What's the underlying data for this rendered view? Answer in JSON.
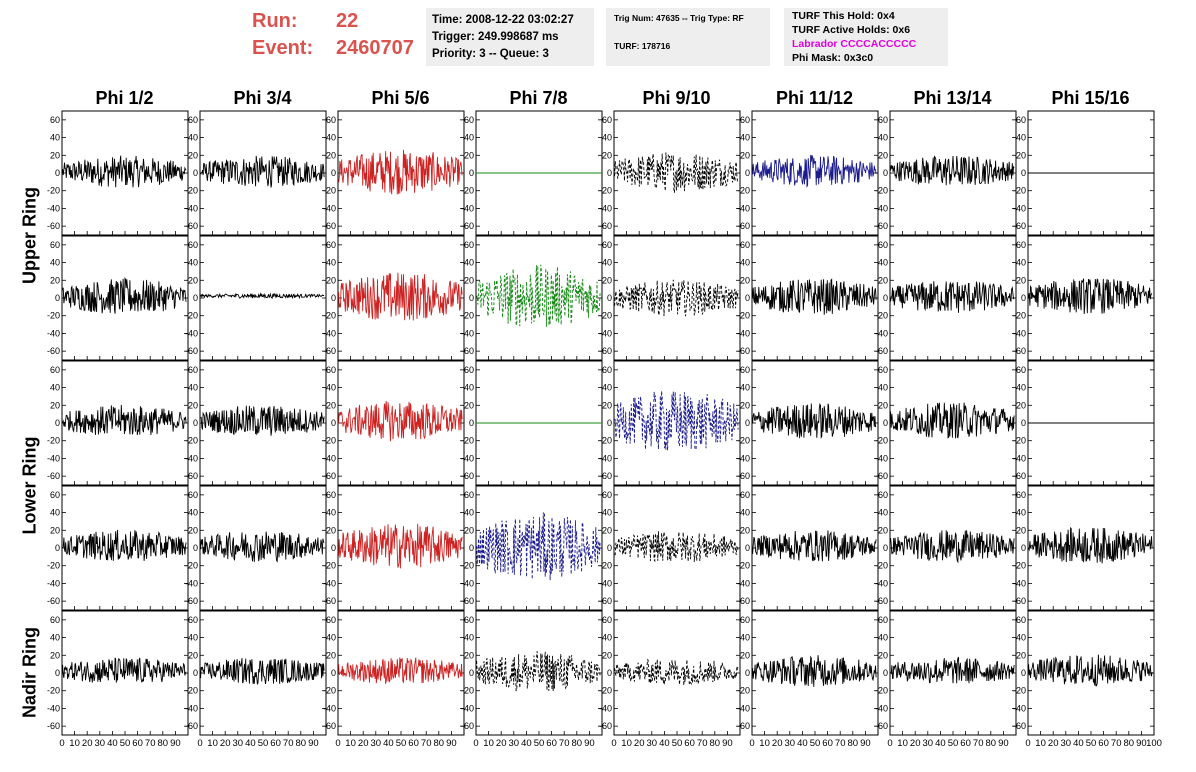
{
  "header": {
    "run_label": "Run:",
    "run_value": "22",
    "event_label": "Event:",
    "event_value": "2460707",
    "time": "Time: 2008-12-22 03:02:27",
    "trigger": "Trigger: 249.998687 ms",
    "priority": "Priority: 3 -- Queue: 3",
    "trig_num": "Trig Num: 47635 -- Trig Type: RF",
    "turf": "TURF: 178716",
    "turf_hold": "TURF This Hold: 0x4",
    "turf_active": "TURF Active Holds: 0x6",
    "labrador": "Labrador CCCCACCCCC",
    "phi_mask": "Phi Mask: 0x3c0"
  },
  "columns": [
    "Phi 1/2",
    "Phi 3/4",
    "Phi 5/6",
    "Phi 7/8",
    "Phi 9/10",
    "Phi 11/12",
    "Phi 13/14",
    "Phi 15/16"
  ],
  "rows": [
    "Upper Ring",
    "Lower Ring",
    "Nadir Ring"
  ],
  "colors": {
    "black": "#000000",
    "red": "#cc2222",
    "green": "#118811",
    "blue": "#1a1a8c",
    "title_red": "#d9534f",
    "magenta": "#e000e0"
  },
  "chart_data": {
    "type": "line",
    "xlim": [
      0,
      100
    ],
    "ylim": [
      -70,
      70
    ],
    "x_ticks": [
      0,
      10,
      20,
      30,
      40,
      50,
      60,
      70,
      80,
      90,
      100
    ],
    "x_tick_labels": [
      "0",
      "10",
      "20",
      "30",
      "40",
      "50",
      "60",
      "70",
      "80",
      "90",
      "100"
    ],
    "y_ticks": [
      -60,
      -40,
      -20,
      0,
      20,
      40,
      60
    ],
    "y_tick_labels": [
      "-60",
      "-40",
      "-20",
      "0",
      "20",
      "40",
      "60"
    ],
    "panels": [
      [
        {
          "color": "black",
          "dash": false,
          "amp": 14,
          "center": 5,
          "trace": "noise"
        },
        {
          "color": "black",
          "dash": false,
          "amp": 14,
          "center": 5,
          "trace": "noise"
        },
        {
          "color": "red",
          "dash": false,
          "amp": 20,
          "center": 5,
          "trace": "noise"
        },
        {
          "color": "green",
          "dash": false,
          "amp": 0,
          "center": 0,
          "trace": "flat"
        },
        {
          "color": "black",
          "dash": true,
          "amp": 18,
          "center": 5,
          "trace": "noise"
        },
        {
          "color": "blue",
          "dash": false,
          "amp": 14,
          "center": 8,
          "trace": "noise"
        },
        {
          "color": "black",
          "dash": false,
          "amp": 14,
          "center": 8,
          "trace": "noise"
        },
        {
          "color": "black",
          "dash": false,
          "amp": 0,
          "center": 0,
          "trace": "flat"
        }
      ],
      [
        {
          "color": "black",
          "dash": false,
          "amp": 16,
          "center": 5,
          "trace": "noise"
        },
        {
          "color": "black",
          "dash": false,
          "amp": 2,
          "center": 8,
          "trace": "noise"
        },
        {
          "color": "red",
          "dash": false,
          "amp": 22,
          "center": 5,
          "trace": "noise"
        },
        {
          "color": "green",
          "dash": true,
          "amp": 28,
          "center": 5,
          "trace": "noise"
        },
        {
          "color": "black",
          "dash": true,
          "amp": 16,
          "center": 0,
          "trace": "noise"
        },
        {
          "color": "black",
          "dash": false,
          "amp": 16,
          "center": 5,
          "trace": "noise"
        },
        {
          "color": "black",
          "dash": false,
          "amp": 15,
          "center": 5,
          "trace": "noise"
        },
        {
          "color": "black",
          "dash": false,
          "amp": 16,
          "center": 8,
          "trace": "noise"
        }
      ],
      [
        {
          "color": "black",
          "dash": false,
          "amp": 14,
          "center": 8,
          "trace": "noise"
        },
        {
          "color": "black",
          "dash": false,
          "amp": 14,
          "center": 8,
          "trace": "noise"
        },
        {
          "color": "red",
          "dash": false,
          "amp": 18,
          "center": 8,
          "trace": "noise"
        },
        {
          "color": "green",
          "dash": false,
          "amp": 0,
          "center": 0,
          "trace": "flat"
        },
        {
          "color": "blue",
          "dash": true,
          "amp": 28,
          "center": 5,
          "trace": "noise"
        },
        {
          "color": "black",
          "dash": false,
          "amp": 16,
          "center": 8,
          "trace": "noise"
        },
        {
          "color": "black",
          "dash": false,
          "amp": 16,
          "center": 10,
          "trace": "noise"
        },
        {
          "color": "black",
          "dash": false,
          "amp": 0,
          "center": 0,
          "trace": "flat"
        }
      ],
      [
        {
          "color": "black",
          "dash": false,
          "amp": 14,
          "center": 8,
          "trace": "noise"
        },
        {
          "color": "black",
          "dash": false,
          "amp": 14,
          "center": 8,
          "trace": "noise"
        },
        {
          "color": "red",
          "dash": false,
          "amp": 20,
          "center": 8,
          "trace": "noise"
        },
        {
          "color": "blue",
          "dash": true,
          "amp": 30,
          "center": 5,
          "trace": "noise"
        },
        {
          "color": "black",
          "dash": true,
          "amp": 14,
          "center": 5,
          "trace": "noise"
        },
        {
          "color": "black",
          "dash": false,
          "amp": 14,
          "center": 8,
          "trace": "noise"
        },
        {
          "color": "black",
          "dash": false,
          "amp": 14,
          "center": 8,
          "trace": "noise"
        },
        {
          "color": "black",
          "dash": false,
          "amp": 16,
          "center": 10,
          "trace": "noise"
        }
      ],
      [
        {
          "color": "black",
          "dash": false,
          "amp": 12,
          "center": 8,
          "trace": "noise"
        },
        {
          "color": "black",
          "dash": false,
          "amp": 12,
          "center": 8,
          "trace": "noise"
        },
        {
          "color": "red",
          "dash": false,
          "amp": 12,
          "center": 8,
          "trace": "noise"
        },
        {
          "color": "black",
          "dash": true,
          "amp": 18,
          "center": 5,
          "trace": "noise"
        },
        {
          "color": "black",
          "dash": true,
          "amp": 12,
          "center": 5,
          "trace": "noise"
        },
        {
          "color": "black",
          "dash": false,
          "amp": 14,
          "center": 8,
          "trace": "noise"
        },
        {
          "color": "black",
          "dash": false,
          "amp": 12,
          "center": 8,
          "trace": "noise"
        },
        {
          "color": "black",
          "dash": false,
          "amp": 14,
          "center": 10,
          "trace": "noise"
        }
      ]
    ]
  }
}
